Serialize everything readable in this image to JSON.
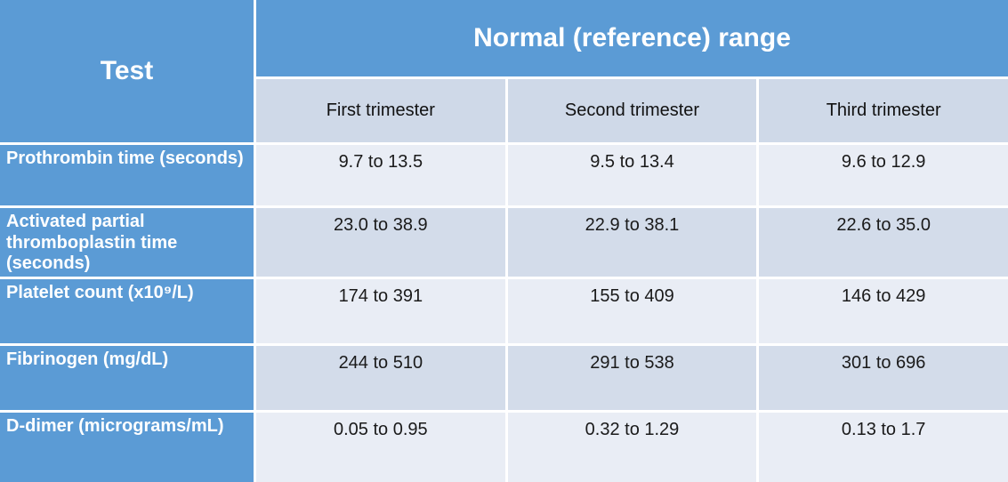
{
  "table": {
    "corner_header": "Test",
    "banner": "Normal (reference) range",
    "columns": [
      "First trimester",
      "Second trimester",
      "Third trimester"
    ],
    "rows": [
      {
        "label": "Prothrombin time (seconds)",
        "values": [
          "9.7 to 13.5",
          "9.5 to 13.4",
          "9.6 to 12.9"
        ]
      },
      {
        "label": "Activated partial thromboplastin time (seconds)",
        "values": [
          "23.0 to 38.9",
          "22.9 to 38.1",
          "22.6 to 35.0"
        ]
      },
      {
        "label": "Platelet count (x10⁹/L)",
        "values": [
          "174 to 391",
          "155 to 409",
          "146 to 429"
        ]
      },
      {
        "label": "Fibrinogen (mg/dL)",
        "values": [
          "244 to 510",
          "291 to 538",
          "301 to 696"
        ]
      },
      {
        "label": "D-dimer (micrograms/mL)",
        "values": [
          "0.05 to 0.95",
          "0.32 to 1.29",
          "0.13 to 1.7"
        ]
      }
    ],
    "colors": {
      "header_blue": "#5b9bd5",
      "subheader_bg": "#cfd9e8",
      "band_light": "#e9edf5",
      "band_dark": "#d3dcea",
      "border": "#ffffff",
      "header_text": "#ffffff",
      "body_text": "#1a1a1a"
    }
  },
  "chart_data": {
    "type": "table",
    "title": "Normal (reference) range",
    "row_header": "Test",
    "columns": [
      "First trimester",
      "Second trimester",
      "Third trimester"
    ],
    "rows": [
      [
        "Prothrombin time (seconds)",
        "9.7 to 13.5",
        "9.5 to 13.4",
        "9.6 to 12.9"
      ],
      [
        "Activated partial thromboplastin time (seconds)",
        "23.0 to 38.9",
        "22.9 to 38.1",
        "22.6 to 35.0"
      ],
      [
        "Platelet count (x10⁹/L)",
        "174 to 391",
        "155 to 409",
        "146 to 429"
      ],
      [
        "Fibrinogen (mg/dL)",
        "244 to 510",
        "291 to 538",
        "301 to 696"
      ],
      [
        "D-dimer (micrograms/mL)",
        "0.05 to 0.95",
        "0.32 to 1.29",
        "0.13 to 1.7"
      ]
    ]
  }
}
